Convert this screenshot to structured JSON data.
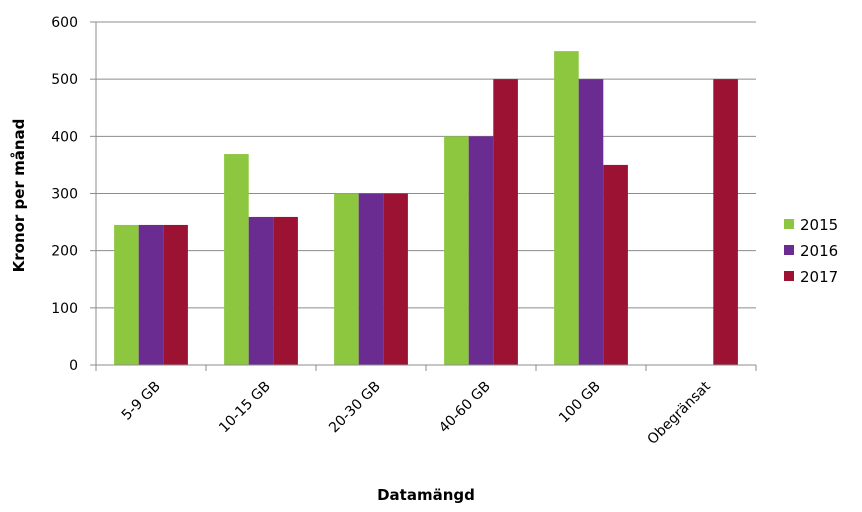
{
  "chart_data": {
    "type": "bar",
    "categories": [
      "5-9 GB",
      "10-15 GB",
      "20-30 GB",
      "40-60 GB",
      "100 GB",
      "Obegränsat"
    ],
    "series": [
      {
        "name": "2015",
        "color": "#8dc63f",
        "values": [
          245,
          369,
          300,
          400,
          549,
          null
        ]
      },
      {
        "name": "2016",
        "color": "#6a2c91",
        "values": [
          245,
          259,
          300,
          400,
          500,
          null
        ]
      },
      {
        "name": "2017",
        "color": "#9b1233",
        "values": [
          245,
          259,
          300,
          500,
          350,
          500
        ]
      }
    ],
    "xlabel": "Datamängd",
    "ylabel": "Kronor  per månad",
    "ylim": [
      0,
      600
    ],
    "yticks": [
      0,
      100,
      200,
      300,
      400,
      500,
      600
    ],
    "grid": true,
    "legend_position": "right"
  }
}
